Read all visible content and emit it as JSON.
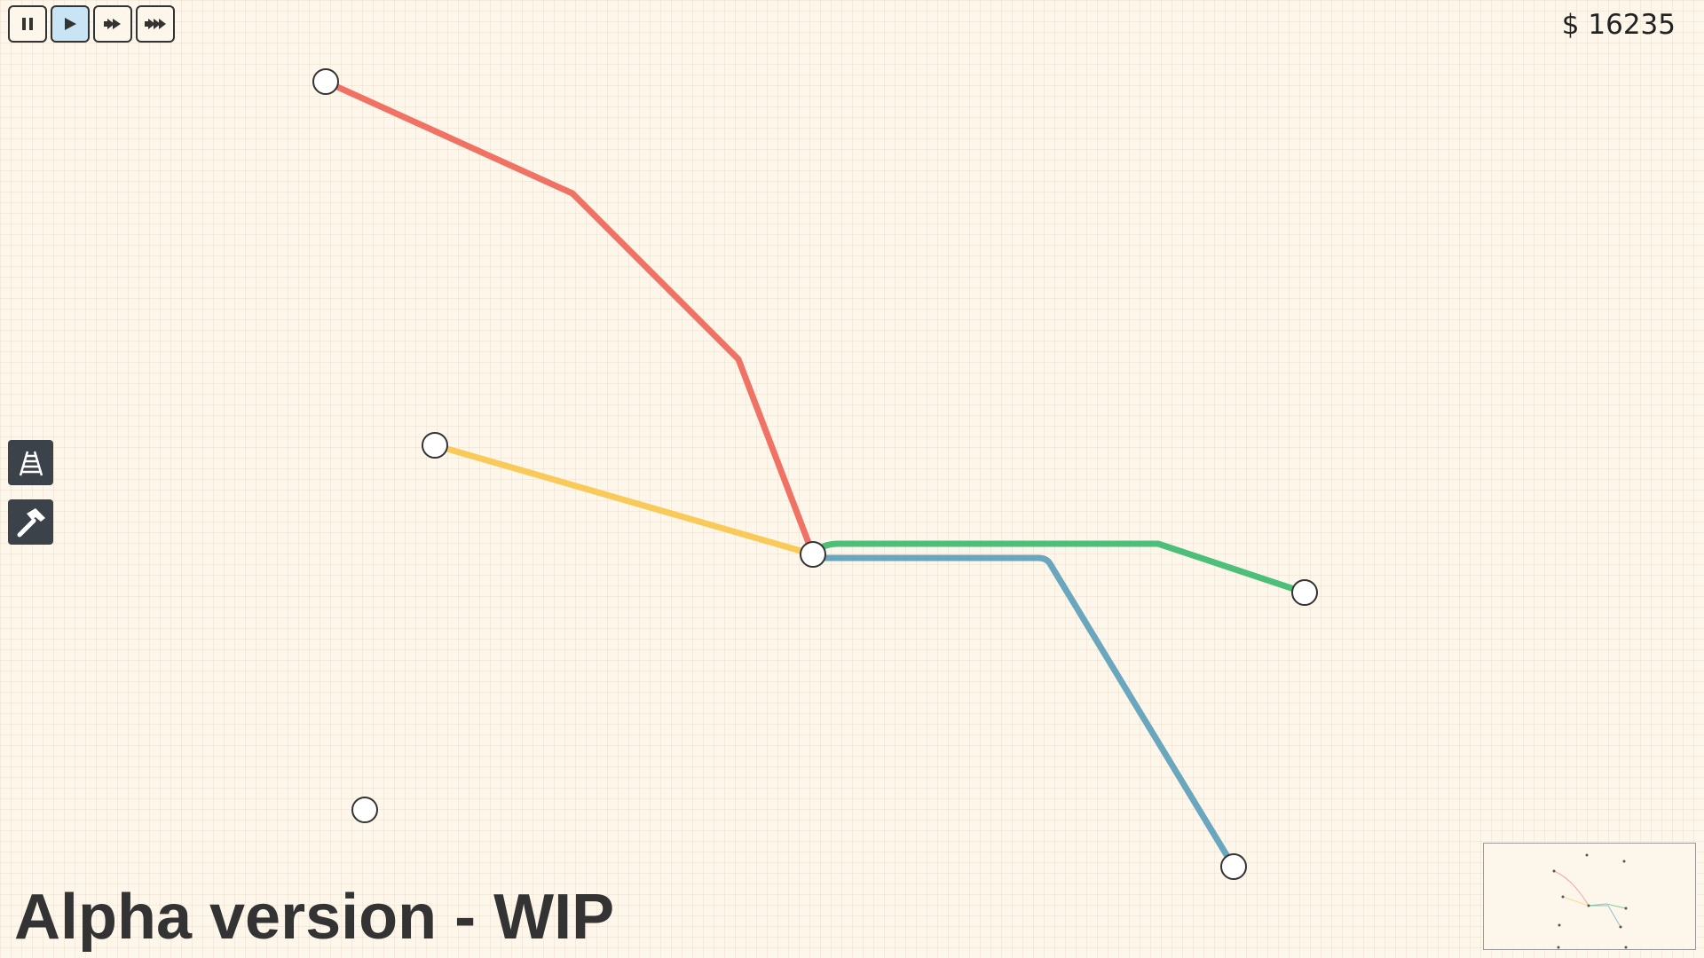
{
  "toolbar": {
    "speed_buttons": [
      {
        "name": "pause",
        "icon": "pause-icon",
        "active": false
      },
      {
        "name": "play",
        "icon": "play-icon",
        "active": true
      },
      {
        "name": "fast-forward",
        "icon": "fast-forward-icon",
        "active": false
      },
      {
        "name": "faster-forward",
        "icon": "faster-forward-icon",
        "active": false
      }
    ]
  },
  "money": {
    "display": "$ 16235"
  },
  "tools": [
    {
      "name": "track",
      "icon": "railway-track-icon"
    },
    {
      "name": "build",
      "icon": "hammer-icon"
    }
  ],
  "footer": {
    "version_label": "Alpha version - WIP"
  },
  "colors": {
    "background": "#fdf6ea",
    "red_line": "#f07264",
    "yellow_line": "#f9ca5a",
    "green_line": "#4cc07a",
    "blue_line": "#6aa6bd",
    "station_fill": "#ffffff",
    "station_stroke": "#333333",
    "active_button": "#c9e4f5",
    "tool_button": "#3b4249"
  },
  "map": {
    "stations": [
      {
        "id": "s1"
      },
      {
        "id": "s2"
      },
      {
        "id": "s3"
      },
      {
        "id": "s4"
      },
      {
        "id": "s5"
      },
      {
        "id": "s6"
      },
      {
        "id": "s7"
      }
    ],
    "lines": [
      {
        "id": "red",
        "color": "#f07264",
        "stations": [
          "s1",
          "s3"
        ]
      },
      {
        "id": "yellow",
        "color": "#f9ca5a",
        "stations": [
          "s2",
          "s3"
        ]
      },
      {
        "id": "green",
        "color": "#4cc07a",
        "stations": [
          "s3",
          "s4"
        ]
      },
      {
        "id": "blue",
        "color": "#6aa6bd",
        "stations": [
          "s3",
          "s6"
        ]
      }
    ]
  }
}
